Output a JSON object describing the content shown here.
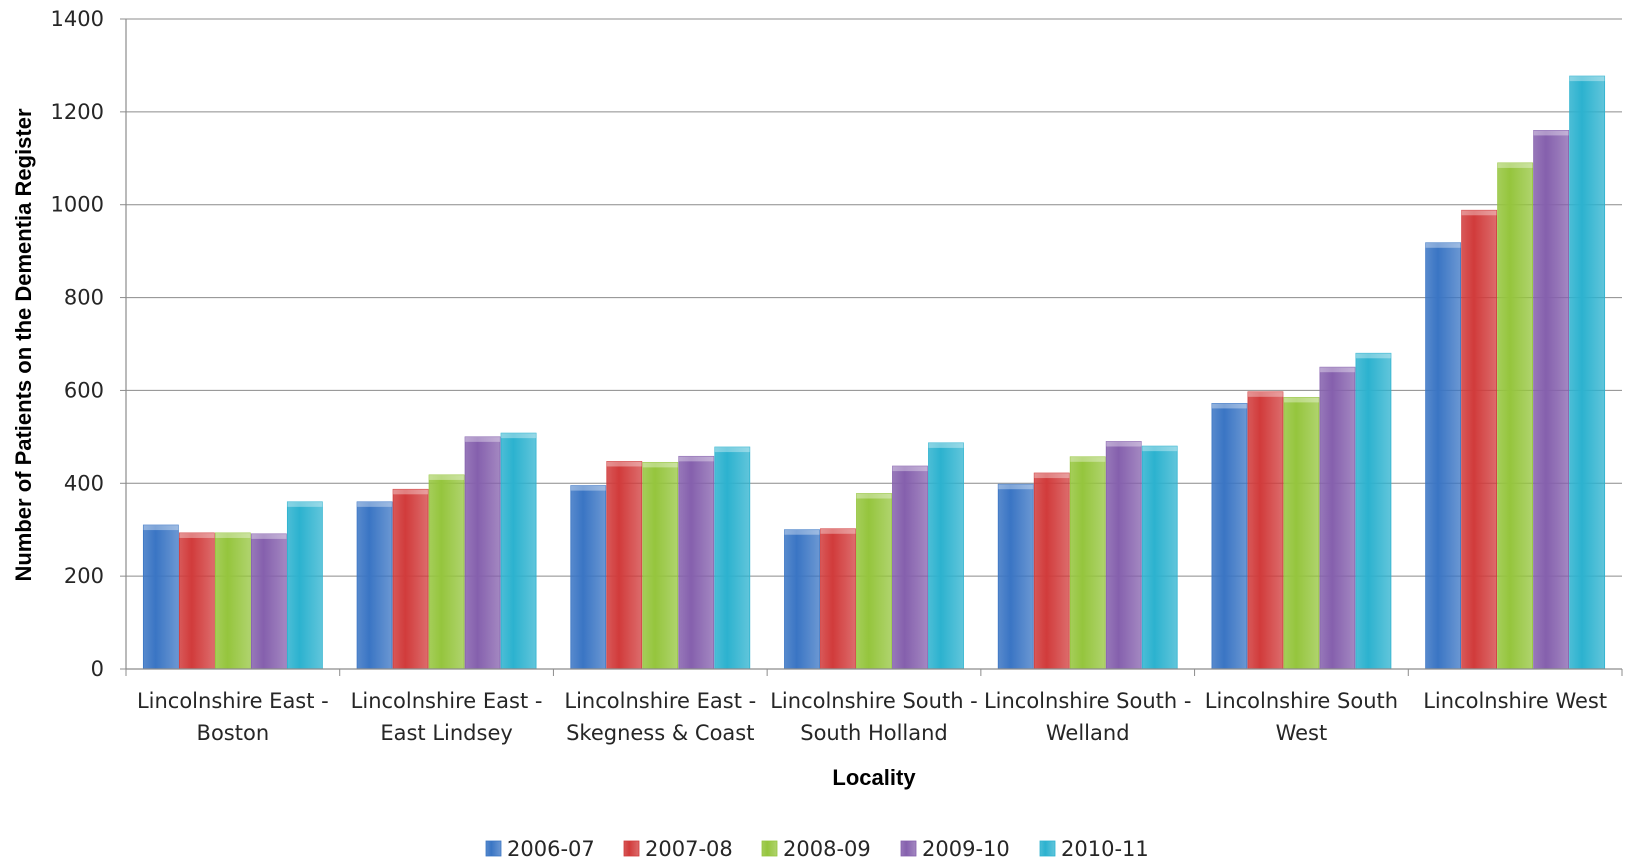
{
  "chart_data": {
    "type": "bar",
    "title": "",
    "xlabel": "Locality",
    "ylabel": "Number of Patients on the Dementia Register",
    "ylim": [
      0,
      1400
    ],
    "yticks": [
      0,
      200,
      400,
      600,
      800,
      1000,
      1200,
      1400
    ],
    "grid": true,
    "legend_position": "bottom",
    "categories": [
      [
        "Lincolnshire East -",
        "Boston"
      ],
      [
        "Lincolnshire East -",
        "East Lindsey"
      ],
      [
        "Lincolnshire East -",
        "Skegness & Coast"
      ],
      [
        "Lincolnshire South -",
        "South Holland"
      ],
      [
        "Lincolnshire South -",
        "Welland"
      ],
      [
        "Lincolnshire South",
        "West"
      ],
      [
        "Lincolnshire West"
      ]
    ],
    "series": [
      {
        "name": "2006-07",
        "color": "#3a75c4",
        "values": [
          310,
          360,
          395,
          300,
          398,
          572,
          918
        ]
      },
      {
        "name": "2007-08",
        "color": "#d13b3b",
        "values": [
          293,
          387,
          447,
          302,
          422,
          597,
          988
        ]
      },
      {
        "name": "2008-09",
        "color": "#95c53d",
        "values": [
          293,
          418,
          445,
          378,
          457,
          585,
          1090
        ]
      },
      {
        "name": "2009-10",
        "color": "#8560ad",
        "values": [
          291,
          500,
          458,
          437,
          490,
          650,
          1160
        ]
      },
      {
        "name": "2010-11",
        "color": "#2cb2cf",
        "values": [
          360,
          508,
          478,
          487,
          480,
          680,
          1277
        ]
      }
    ]
  }
}
